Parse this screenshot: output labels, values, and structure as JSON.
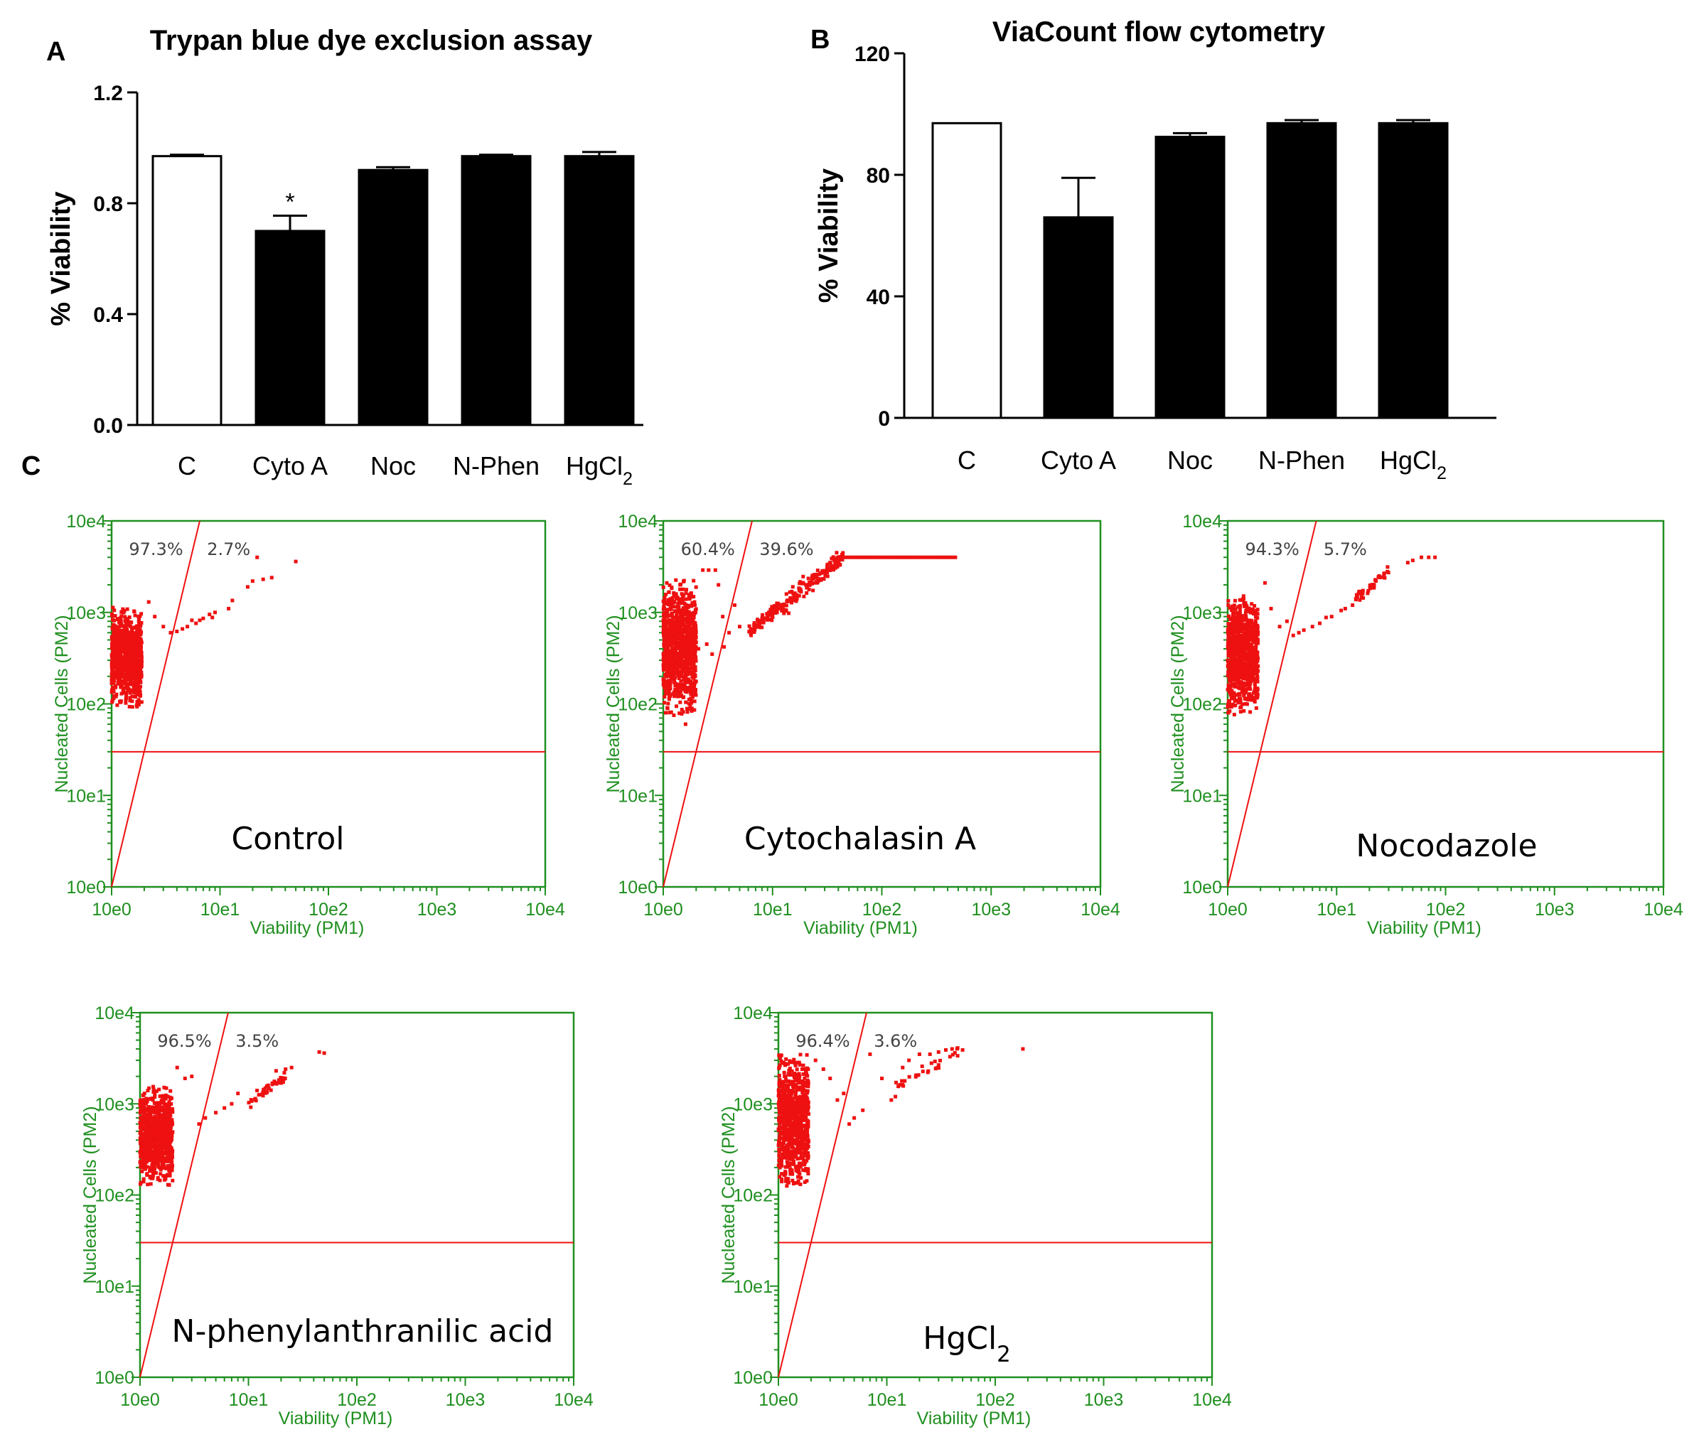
{
  "chart_data": [
    {
      "panel": "A",
      "type": "bar",
      "title": "Trypan blue dye exclusion assay",
      "xlabel": "",
      "ylabel": "% Viability",
      "ylim": [
        0,
        1.2
      ],
      "yticks": [
        "0.0",
        "0.4",
        "0.8",
        "1.2"
      ],
      "categories": [
        "C",
        "Cyto A",
        "Noc",
        "N-Phen",
        "HgCl"
      ],
      "category_subscripts": [
        "",
        "",
        "",
        "",
        "2"
      ],
      "values": [
        0.97,
        0.7,
        0.92,
        0.97,
        0.97
      ],
      "errors": [
        0.005,
        0.055,
        0.01,
        0.005,
        0.015
      ],
      "fills": [
        "#ffffff",
        "#000000",
        "#000000",
        "#000000",
        "#000000"
      ],
      "annotations": [
        {
          "category": "Cyto A",
          "text": "*"
        }
      ]
    },
    {
      "panel": "B",
      "type": "bar",
      "title": "ViaCount flow cytometry",
      "xlabel": "",
      "ylabel": "% Viability",
      "ylim": [
        0,
        120
      ],
      "yticks": [
        "0",
        "40",
        "80",
        "120"
      ],
      "categories": [
        "C",
        "Cyto A",
        "Noc",
        "N-Phen",
        "HgCl"
      ],
      "category_subscripts": [
        "",
        "",
        "",
        "",
        "2"
      ],
      "values": [
        97,
        66,
        92.5,
        97,
        97
      ],
      "errors": [
        0,
        13,
        1.2,
        1,
        1
      ],
      "fills": [
        "#ffffff",
        "#000000",
        "#000000",
        "#000000",
        "#000000"
      ]
    },
    {
      "panel": "C1",
      "type": "scatter",
      "label": "Control",
      "label_sub": "",
      "xlabel": "Viability (PM1)",
      "ylabel": "Nucleated Cells (PM2)",
      "xticks": [
        "10e0",
        "10e1",
        "10e2",
        "10e3",
        "10e4"
      ],
      "yticks": [
        "10e0",
        "10e1",
        "10e2",
        "10e3",
        "10e4"
      ],
      "axis_scale": "log10",
      "range": [
        1,
        10000
      ],
      "gate_percentages": [
        "97.3%",
        "2.7%"
      ],
      "gate_line": {
        "from": [
          1,
          1
        ],
        "to": [
          6.5,
          10000
        ]
      },
      "threshold_y": 30,
      "cluster": {
        "x": [
          1.0,
          1.9
        ],
        "y": [
          110,
          950
        ],
        "n": 900
      },
      "tail": [
        [
          2.2,
          1300
        ],
        [
          2.5,
          900
        ],
        [
          3,
          700
        ],
        [
          3.5,
          600
        ],
        [
          4,
          620
        ],
        [
          4.5,
          660
        ],
        [
          5,
          700
        ],
        [
          5.5,
          820
        ],
        [
          6,
          760
        ],
        [
          6.5,
          820
        ],
        [
          7,
          860
        ],
        [
          8,
          950
        ],
        [
          8.5,
          880
        ],
        [
          9,
          1000
        ],
        [
          12,
          1100
        ],
        [
          13,
          1350
        ],
        [
          18,
          1900
        ],
        [
          20,
          2200
        ],
        [
          22,
          4000
        ],
        [
          25,
          2300
        ],
        [
          30,
          2400
        ],
        [
          50,
          3600
        ]
      ]
    },
    {
      "panel": "C2",
      "type": "scatter",
      "label": "Cytochalasin A",
      "label_sub": "",
      "xlabel": "Viability (PM1)",
      "ylabel": "Nucleated Cells (PM2)",
      "xticks": [
        "10e0",
        "10e1",
        "10e2",
        "10e3",
        "10e4"
      ],
      "yticks": [
        "10e0",
        "10e1",
        "10e2",
        "10e3",
        "10e4"
      ],
      "axis_scale": "log10",
      "range": [
        1,
        10000
      ],
      "gate_percentages": [
        "60.4%",
        "39.6%"
      ],
      "gate_line": {
        "from": [
          1,
          1
        ],
        "to": [
          6.5,
          10000
        ]
      },
      "threshold_y": 30,
      "cluster": {
        "x": [
          1.0,
          2.0
        ],
        "y": [
          90,
          1900
        ],
        "n": 1000
      },
      "tail": [
        [
          2.3,
          2900
        ],
        [
          2.6,
          2900
        ],
        [
          3,
          2900
        ],
        [
          3.2,
          2000
        ],
        [
          3.5,
          900
        ],
        [
          4,
          600
        ],
        [
          4.5,
          1200
        ],
        [
          5,
          700
        ],
        [
          2.1,
          400
        ],
        [
          2.5,
          450
        ],
        [
          2.8,
          350
        ],
        [
          3.6,
          420
        ],
        [
          1.6,
          60
        ]
      ],
      "curve": {
        "x_from": 6,
        "x_to": 45,
        "y_from": 600,
        "y_to": 4000,
        "n": 220,
        "spread": 0.09
      },
      "plateau": {
        "x_from": 45,
        "x_to": 500,
        "y": 4000,
        "n": 40
      }
    },
    {
      "panel": "C3",
      "type": "scatter",
      "label": "Nocodazole",
      "label_sub": "",
      "xlabel": "Viability (PM1)",
      "ylabel": "Nucleated Cells (PM2)",
      "xticks": [
        "10e0",
        "10e1",
        "10e2",
        "10e3",
        "10e4"
      ],
      "yticks": [
        "10e0",
        "10e1",
        "10e2",
        "10e3",
        "10e4"
      ],
      "axis_scale": "log10",
      "range": [
        1,
        10000
      ],
      "gate_percentages": [
        "94.3%",
        "5.7%"
      ],
      "gate_line": {
        "from": [
          1,
          1
        ],
        "to": [
          6.5,
          10000
        ]
      },
      "threshold_y": 30,
      "cluster": {
        "x": [
          1.0,
          1.9
        ],
        "y": [
          90,
          1300
        ],
        "n": 900
      },
      "tail": [
        [
          2.2,
          2100
        ],
        [
          2.5,
          1100
        ],
        [
          3,
          700
        ],
        [
          3.5,
          800
        ],
        [
          4,
          560
        ],
        [
          4.5,
          600
        ],
        [
          5,
          640
        ],
        [
          6,
          700
        ],
        [
          7,
          760
        ],
        [
          8,
          880
        ],
        [
          9,
          900
        ],
        [
          11,
          1050
        ],
        [
          12,
          1100
        ],
        [
          14,
          1200
        ],
        [
          60,
          4000
        ],
        [
          70,
          4000
        ],
        [
          80,
          4000
        ],
        [
          50,
          3700
        ],
        [
          45,
          3500
        ]
      ],
      "curve": {
        "x_from": 15,
        "x_to": 30,
        "y_from": 1400,
        "y_to": 2800,
        "n": 40,
        "spread": 0.06
      }
    },
    {
      "panel": "C4",
      "type": "scatter",
      "label": "N-phenylanthranilic acid",
      "label_sub": "",
      "xlabel": "Viability (PM1)",
      "ylabel": "Nucleated Cells (PM2)",
      "xticks": [
        "10e0",
        "10e1",
        "10e2",
        "10e3",
        "10e4"
      ],
      "yticks": [
        "10e0",
        "10e1",
        "10e2",
        "10e3",
        "10e4"
      ],
      "axis_scale": "log10",
      "range": [
        1,
        10000
      ],
      "gate_percentages": [
        "96.5%",
        "3.5%"
      ],
      "gate_line": {
        "from": [
          1,
          1
        ],
        "to": [
          6.5,
          10000
        ]
      },
      "threshold_y": 30,
      "cluster": {
        "x": [
          1.0,
          2.0
        ],
        "y": [
          150,
          1300
        ],
        "n": 900
      },
      "tail": [
        [
          2.2,
          2500
        ],
        [
          2.6,
          1900
        ],
        [
          3,
          2000
        ],
        [
          3.5,
          600
        ],
        [
          4,
          700
        ],
        [
          5,
          800
        ],
        [
          6,
          900
        ],
        [
          7,
          1000
        ],
        [
          8,
          1300
        ],
        [
          12,
          1400
        ],
        [
          18,
          2300
        ],
        [
          22,
          2400
        ],
        [
          25,
          2500
        ],
        [
          45,
          3700
        ],
        [
          50,
          3600
        ]
      ],
      "curve": {
        "x_from": 10,
        "x_to": 22,
        "y_from": 1000,
        "y_to": 2100,
        "n": 40,
        "spread": 0.06
      }
    },
    {
      "panel": "C5",
      "type": "scatter",
      "label": "HgCl",
      "label_sub": "2",
      "xlabel": "Viability (PM1)",
      "ylabel": "Nucleated Cells (PM2)",
      "xticks": [
        "10e0",
        "10e1",
        "10e2",
        "10e3",
        "10e4"
      ],
      "yticks": [
        "10e0",
        "10e1",
        "10e2",
        "10e3",
        "10e4"
      ],
      "axis_scale": "log10",
      "range": [
        1,
        10000
      ],
      "gate_percentages": [
        "96.4%",
        "3.6%"
      ],
      "gate_line": {
        "from": [
          1,
          1
        ],
        "to": [
          6.5,
          10000
        ]
      },
      "threshold_y": 30,
      "cluster": {
        "x": [
          1.0,
          1.9
        ],
        "y": [
          150,
          2900
        ],
        "n": 900
      },
      "tail": [
        [
          2.2,
          3000
        ],
        [
          2.6,
          2400
        ],
        [
          3,
          1900
        ],
        [
          3.5,
          1100
        ],
        [
          4,
          1300
        ],
        [
          4.5,
          600
        ],
        [
          5,
          700
        ],
        [
          6,
          850
        ],
        [
          7,
          3500
        ],
        [
          9,
          1900
        ],
        [
          11,
          1100
        ],
        [
          12,
          1200
        ],
        [
          14,
          2500
        ],
        [
          16,
          3000
        ],
        [
          20,
          3500
        ],
        [
          25,
          3500
        ],
        [
          30,
          3700
        ],
        [
          35,
          3900
        ],
        [
          40,
          4000
        ],
        [
          45,
          4100
        ],
        [
          50,
          3900
        ],
        [
          180,
          4000
        ]
      ],
      "curve": {
        "x_from": 12,
        "x_to": 45,
        "y_from": 1500,
        "y_to": 3700,
        "n": 30,
        "spread": 0.07
      }
    }
  ],
  "panel_letters": {
    "a": "A",
    "b": "B",
    "c": "C"
  }
}
